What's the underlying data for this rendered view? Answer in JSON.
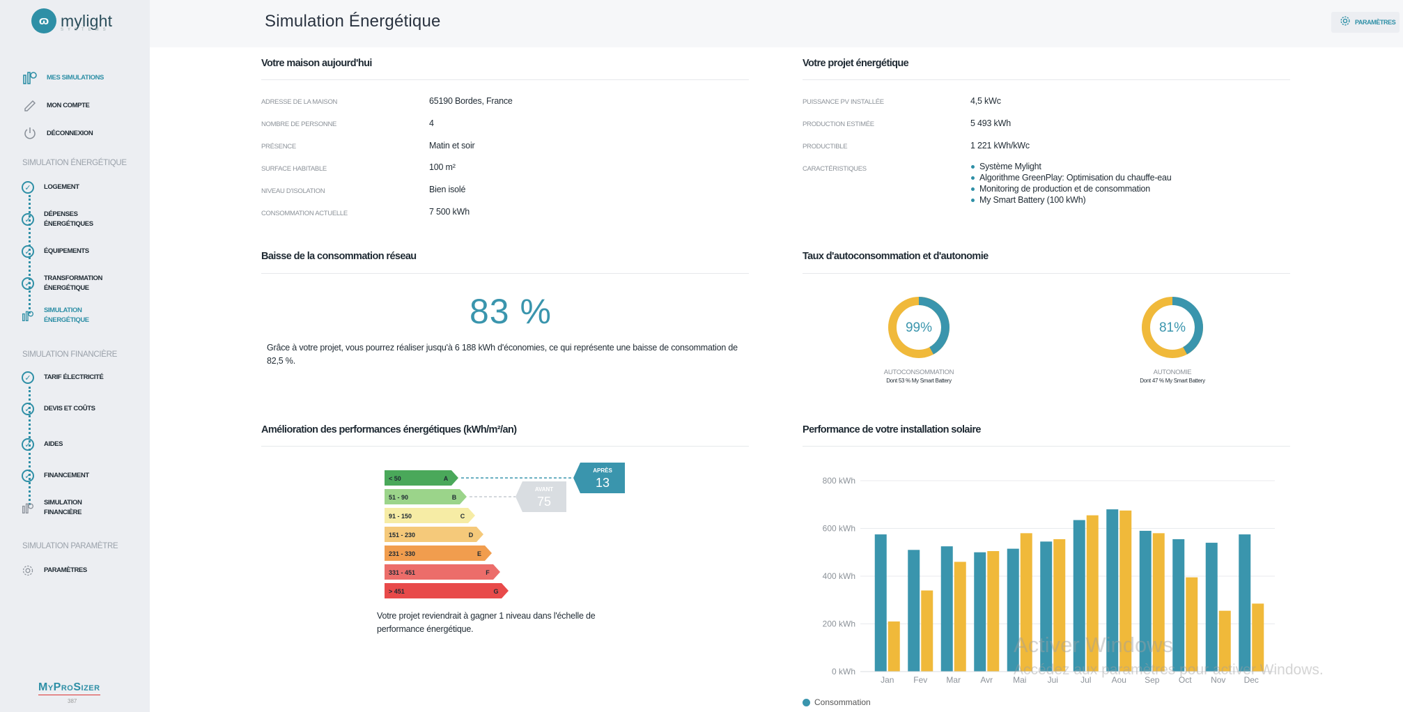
{
  "app": {
    "brand": "mylight",
    "brand_sub": "SYSTEMS",
    "footer_brand": "MyProSizer",
    "footer_version": "387"
  },
  "sidebar": {
    "top_items": [
      {
        "label": "MES SIMULATIONS",
        "icon": "simulations-icon",
        "active": true
      },
      {
        "label": "MON COMPTE",
        "icon": "pencil-icon",
        "active": false
      },
      {
        "label": "DÉCONNEXION",
        "icon": "power-icon",
        "active": false
      }
    ],
    "sections": [
      {
        "title": "SIMULATION ÉNERGÉTIQUE",
        "steps": [
          {
            "label": "LOGEMENT"
          },
          {
            "label": "DÉPENSES ÉNERGÉTIQUES"
          },
          {
            "label": "ÉQUIPEMENTS"
          },
          {
            "label": "TRANSFORMATION ÉNERGÉTIQUE"
          },
          {
            "label": "SIMULATION ÉNERGÉTIQUE",
            "active": true
          }
        ]
      },
      {
        "title": "SIMULATION FINANCIÈRE",
        "steps": [
          {
            "label": "TARIF ÉLECTRICITÉ"
          },
          {
            "label": "DEVIS ET COÛTS"
          },
          {
            "label": "AIDES"
          },
          {
            "label": "FINANCEMENT"
          },
          {
            "label": "SIMULATION FINANCIÈRE"
          }
        ]
      },
      {
        "title": "SIMULATION PARAMÈTRE",
        "steps": [
          {
            "label": "PARAMÈTRES"
          }
        ]
      }
    ]
  },
  "header": {
    "title": "Simulation Énergétique",
    "params_label": "PARAMÈTRES"
  },
  "house": {
    "title": "Votre maison aujourd'hui",
    "rows": [
      {
        "key": "ADRESSE DE LA MAISON",
        "value": "65190 Bordes, France"
      },
      {
        "key": "NOMBRE DE PERSONNE",
        "value": "4"
      },
      {
        "key": "PRÉSENCE",
        "value": "Matin et soir"
      },
      {
        "key": "SURFACE HABITABLE",
        "value": "100 m²"
      },
      {
        "key": "NIVEAU D'ISOLATION",
        "value": "Bien isolé"
      },
      {
        "key": "CONSOMMATION ACTUELLE",
        "value": "7 500 kWh"
      }
    ]
  },
  "project": {
    "title": "Votre projet énergétique",
    "rows": [
      {
        "key": "PUISSANCE PV INSTALLÉE",
        "value": "4,5 kWc"
      },
      {
        "key": "PRODUCTION ESTIMÉE",
        "value": "5 493 kWh"
      },
      {
        "key": "PRODUCTIBLE",
        "value": "1 221 kWh/kWc"
      }
    ],
    "features_key": "CARACTÉRISTIQUES",
    "features": [
      "Système Mylight",
      "Algorithme GreenPlay: Optimisation du chauffe-eau",
      "Monitoring de production et de consommation",
      "My Smart Battery (100 kWh)"
    ]
  },
  "reduction": {
    "title": "Baisse de la consommation réseau",
    "percent_text": "83 %",
    "text": "Grâce à votre projet, vous pourrez réaliser jusqu'à 6 188 kWh d'économies, ce qui représente une baisse de consommation de 82,5 %."
  },
  "autonomy": {
    "title": "Taux d'autoconsommation et d'autonomie",
    "donuts": [
      {
        "value": 99,
        "text": "99%",
        "label": "AUTOCONSOMMATION",
        "sub": "Dont 53 % My Smart Battery"
      },
      {
        "value": 81,
        "text": "81%",
        "label": "AUTONOMIE",
        "sub": "Dont 47 % My Smart Battery"
      }
    ],
    "colors": {
      "primary": "#3a95ad",
      "secondary": "#f0b93a",
      "track": "#f0f2f6"
    }
  },
  "dpe": {
    "title": "Amélioration des performances énergétiques (kWh/m²/an)",
    "classes": [
      {
        "range": "< 50",
        "letter": "A",
        "color": "#4aa85a"
      },
      {
        "range": "51 - 90",
        "letter": "B",
        "color": "#9bd48a"
      },
      {
        "range": "91 - 150",
        "letter": "C",
        "color": "#f6eca5"
      },
      {
        "range": "151 - 230",
        "letter": "D",
        "color": "#f5c97a"
      },
      {
        "range": "231 - 330",
        "letter": "E",
        "color": "#f19d4e"
      },
      {
        "range": "331 - 451",
        "letter": "F",
        "color": "#ec6d6a"
      },
      {
        "range": "> 451",
        "letter": "G",
        "color": "#e84a4a"
      }
    ],
    "after": {
      "label": "APRÈS",
      "value": "13",
      "class_index": 0
    },
    "before": {
      "label": "AVANT",
      "value": "75",
      "class_index": 1
    },
    "text": "Votre projet reviendrait à gagner 1 niveau dans l'échelle de performance énergétique."
  },
  "solar": {
    "title": "Performance de votre installation solaire",
    "legend": [
      {
        "name": "Consommation",
        "color": "#3a95ad"
      }
    ],
    "colors": {
      "consumption": "#3a95ad",
      "production": "#f0b93a"
    }
  },
  "chart_data": {
    "type": "bar",
    "categories": [
      "Jan",
      "Fev",
      "Mar",
      "Avr",
      "Mai",
      "Jui",
      "Jul",
      "Aou",
      "Sep",
      "Oct",
      "Nov",
      "Dec"
    ],
    "series": [
      {
        "name": "Consommation",
        "values": [
          575,
          510,
          525,
          500,
          515,
          545,
          635,
          680,
          590,
          555,
          540,
          575
        ]
      },
      {
        "values": [
          210,
          340,
          460,
          505,
          580,
          555,
          655,
          675,
          580,
          395,
          255,
          285
        ]
      }
    ],
    "y_ticks": [
      "0 kWh",
      "200 kWh",
      "400 kWh",
      "600 kWh",
      "800 kWh"
    ],
    "ylim": [
      0,
      800
    ],
    "grid": true,
    "legend_position": "bottom-left"
  },
  "watermark": {
    "line1": "Activer Windows",
    "line2": "Accédez aux paramètres pour activer Windows."
  }
}
